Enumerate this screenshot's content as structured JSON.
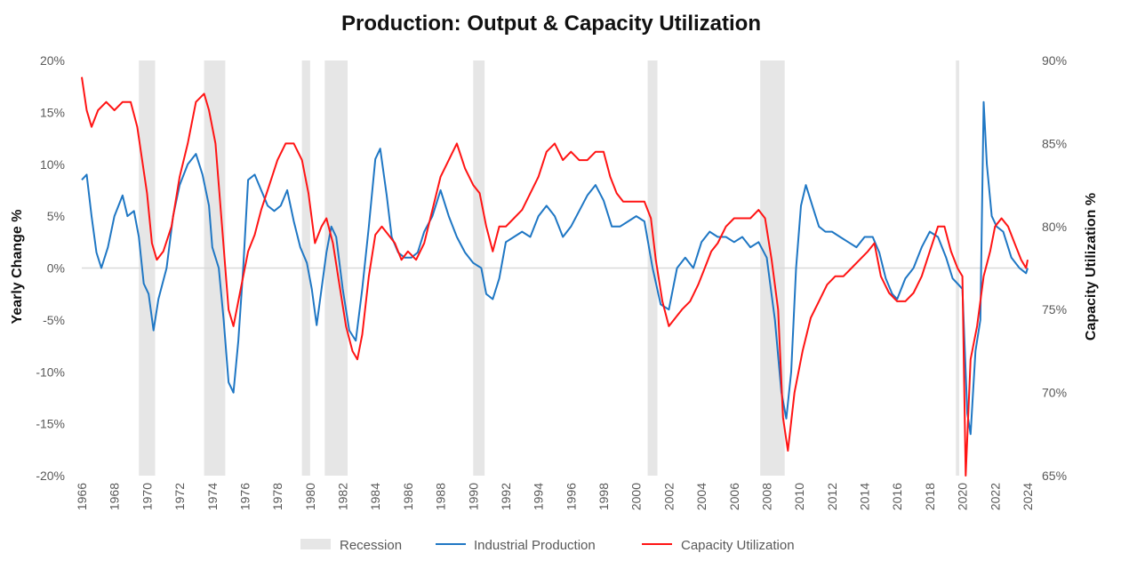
{
  "chart_data": {
    "type": "line",
    "title": "Production: Output & Capacity Utilization",
    "ylabel_left": "Yearly Change %",
    "ylabel_right": "Capacity Utilization %",
    "xlim": [
      1966,
      2024
    ],
    "ylim_left": [
      -20,
      20
    ],
    "ylim_right": [
      65,
      90
    ],
    "x_ticks": [
      "1966",
      "1968",
      "1970",
      "1972",
      "1974",
      "1976",
      "1978",
      "1980",
      "1982",
      "1984",
      "1986",
      "1988",
      "1990",
      "1992",
      "1994",
      "1996",
      "1998",
      "2000",
      "2002",
      "2004",
      "2006",
      "2008",
      "2010",
      "2012",
      "2014",
      "2016",
      "2018",
      "2020",
      "2022",
      "2024"
    ],
    "left_ticks": [
      "-20%",
      "-15%",
      "-10%",
      "-5%",
      "0%",
      "5%",
      "10%",
      "15%",
      "20%"
    ],
    "right_ticks": [
      "65%",
      "70%",
      "75%",
      "80%",
      "85%",
      "90%"
    ],
    "legend": {
      "placement": "bottom"
    },
    "grid": false,
    "recessions": [
      {
        "start": 1969.5,
        "end": 1970.5
      },
      {
        "start": 1973.5,
        "end": 1974.8
      },
      {
        "start": 1979.5,
        "end": 1980.0
      },
      {
        "start": 1980.9,
        "end": 1982.3
      },
      {
        "start": 1990.0,
        "end": 1990.7
      },
      {
        "start": 2000.7,
        "end": 2001.3
      },
      {
        "start": 2007.6,
        "end": 2009.1
      },
      {
        "start": 2019.6,
        "end": 2019.8
      }
    ],
    "series": [
      {
        "name": "Recession",
        "kind": "band",
        "color": "#e6e6e6"
      },
      {
        "name": "Industrial Production",
        "axis": "left",
        "color": "#1f77c4",
        "points": [
          [
            1966.0,
            8.5
          ],
          [
            1966.3,
            9
          ],
          [
            1966.6,
            5
          ],
          [
            1966.9,
            1.5
          ],
          [
            1967.2,
            0
          ],
          [
            1967.6,
            2
          ],
          [
            1968.0,
            5
          ],
          [
            1968.5,
            7
          ],
          [
            1968.8,
            5
          ],
          [
            1969.2,
            5.5
          ],
          [
            1969.5,
            3
          ],
          [
            1969.8,
            -1.5
          ],
          [
            1970.1,
            -2.5
          ],
          [
            1970.4,
            -6
          ],
          [
            1970.7,
            -3
          ],
          [
            1971.2,
            0
          ],
          [
            1971.6,
            5
          ],
          [
            1972.0,
            8
          ],
          [
            1972.5,
            10
          ],
          [
            1973.0,
            11
          ],
          [
            1973.4,
            9
          ],
          [
            1973.8,
            6
          ],
          [
            1974.0,
            2
          ],
          [
            1974.4,
            0
          ],
          [
            1974.7,
            -5
          ],
          [
            1975.0,
            -11
          ],
          [
            1975.3,
            -12
          ],
          [
            1975.6,
            -7
          ],
          [
            1975.9,
            0
          ],
          [
            1976.2,
            8.5
          ],
          [
            1976.6,
            9
          ],
          [
            1977.0,
            7.5
          ],
          [
            1977.4,
            6
          ],
          [
            1977.8,
            5.5
          ],
          [
            1978.2,
            6
          ],
          [
            1978.6,
            7.5
          ],
          [
            1979.0,
            4.5
          ],
          [
            1979.4,
            2
          ],
          [
            1979.8,
            0.5
          ],
          [
            1980.1,
            -2
          ],
          [
            1980.4,
            -5.5
          ],
          [
            1980.7,
            -2
          ],
          [
            1981.0,
            1.5
          ],
          [
            1981.3,
            4
          ],
          [
            1981.6,
            3
          ],
          [
            1982.0,
            -2
          ],
          [
            1982.4,
            -6
          ],
          [
            1982.8,
            -7
          ],
          [
            1983.2,
            -2
          ],
          [
            1983.6,
            4
          ],
          [
            1984.0,
            10.5
          ],
          [
            1984.3,
            11.5
          ],
          [
            1984.7,
            7
          ],
          [
            1985.0,
            3
          ],
          [
            1985.4,
            1.5
          ],
          [
            1985.8,
            1
          ],
          [
            1986.2,
            1
          ],
          [
            1986.6,
            1.5
          ],
          [
            1987.0,
            3.5
          ],
          [
            1987.5,
            5
          ],
          [
            1988.0,
            7.5
          ],
          [
            1988.5,
            5
          ],
          [
            1989.0,
            3
          ],
          [
            1989.5,
            1.5
          ],
          [
            1990.0,
            0.5
          ],
          [
            1990.5,
            0
          ],
          [
            1990.8,
            -2.5
          ],
          [
            1991.2,
            -3
          ],
          [
            1991.6,
            -1
          ],
          [
            1992.0,
            2.5
          ],
          [
            1992.5,
            3
          ],
          [
            1993.0,
            3.5
          ],
          [
            1993.5,
            3
          ],
          [
            1994.0,
            5
          ],
          [
            1994.5,
            6
          ],
          [
            1995.0,
            5
          ],
          [
            1995.5,
            3
          ],
          [
            1996.0,
            4
          ],
          [
            1996.5,
            5.5
          ],
          [
            1997.0,
            7
          ],
          [
            1997.5,
            8
          ],
          [
            1998.0,
            6.5
          ],
          [
            1998.5,
            4
          ],
          [
            1999.0,
            4
          ],
          [
            1999.5,
            4.5
          ],
          [
            2000.0,
            5
          ],
          [
            2000.5,
            4.5
          ],
          [
            2001.0,
            0
          ],
          [
            2001.5,
            -3.5
          ],
          [
            2002.0,
            -4
          ],
          [
            2002.5,
            0
          ],
          [
            2003.0,
            1
          ],
          [
            2003.5,
            0
          ],
          [
            2004.0,
            2.5
          ],
          [
            2004.5,
            3.5
          ],
          [
            2005.0,
            3
          ],
          [
            2005.5,
            3
          ],
          [
            2006.0,
            2.5
          ],
          [
            2006.5,
            3
          ],
          [
            2007.0,
            2
          ],
          [
            2007.5,
            2.5
          ],
          [
            2008.0,
            1
          ],
          [
            2008.5,
            -5
          ],
          [
            2008.9,
            -12
          ],
          [
            2009.2,
            -14.5
          ],
          [
            2009.5,
            -10
          ],
          [
            2009.8,
            0
          ],
          [
            2010.1,
            6
          ],
          [
            2010.4,
            8
          ],
          [
            2010.8,
            6
          ],
          [
            2011.2,
            4
          ],
          [
            2011.6,
            3.5
          ],
          [
            2012.0,
            3.5
          ],
          [
            2012.5,
            3
          ],
          [
            2013.0,
            2.5
          ],
          [
            2013.5,
            2
          ],
          [
            2014.0,
            3
          ],
          [
            2014.5,
            3
          ],
          [
            2014.9,
            1.5
          ],
          [
            2015.3,
            -1
          ],
          [
            2015.7,
            -2.5
          ],
          [
            2016.0,
            -3
          ],
          [
            2016.5,
            -1
          ],
          [
            2017.0,
            0
          ],
          [
            2017.5,
            2
          ],
          [
            2018.0,
            3.5
          ],
          [
            2018.5,
            3
          ],
          [
            2019.0,
            1
          ],
          [
            2019.4,
            -1
          ],
          [
            2019.7,
            -1.5
          ],
          [
            2020.0,
            -2
          ],
          [
            2020.3,
            -14
          ],
          [
            2020.5,
            -16
          ],
          [
            2020.8,
            -8
          ],
          [
            2021.1,
            -5
          ],
          [
            2021.3,
            16
          ],
          [
            2021.5,
            10
          ],
          [
            2021.8,
            5
          ],
          [
            2022.1,
            4
          ],
          [
            2022.5,
            3.5
          ],
          [
            2023.0,
            1
          ],
          [
            2023.5,
            0
          ],
          [
            2023.9,
            -0.5
          ],
          [
            2024.0,
            0
          ]
        ]
      },
      {
        "name": "Capacity Utilization",
        "axis": "right",
        "color": "#ff1414",
        "points": [
          [
            1966.0,
            89
          ],
          [
            1966.3,
            87
          ],
          [
            1966.6,
            86
          ],
          [
            1967.0,
            87
          ],
          [
            1967.5,
            87.5
          ],
          [
            1968.0,
            87
          ],
          [
            1968.5,
            87.5
          ],
          [
            1969.0,
            87.5
          ],
          [
            1969.4,
            86
          ],
          [
            1969.7,
            84
          ],
          [
            1970.0,
            82
          ],
          [
            1970.3,
            79
          ],
          [
            1970.6,
            78
          ],
          [
            1971.0,
            78.5
          ],
          [
            1971.5,
            80
          ],
          [
            1972.0,
            83
          ],
          [
            1972.5,
            85
          ],
          [
            1973.0,
            87.5
          ],
          [
            1973.5,
            88
          ],
          [
            1973.8,
            87
          ],
          [
            1974.2,
            85
          ],
          [
            1974.6,
            80
          ],
          [
            1975.0,
            75
          ],
          [
            1975.3,
            74
          ],
          [
            1975.7,
            76
          ],
          [
            1976.2,
            78.5
          ],
          [
            1976.6,
            79.5
          ],
          [
            1977.0,
            81
          ],
          [
            1977.5,
            82.5
          ],
          [
            1978.0,
            84
          ],
          [
            1978.5,
            85
          ],
          [
            1979.0,
            85
          ],
          [
            1979.5,
            84
          ],
          [
            1979.9,
            82
          ],
          [
            1980.3,
            79
          ],
          [
            1980.7,
            80
          ],
          [
            1981.0,
            80.5
          ],
          [
            1981.4,
            79
          ],
          [
            1981.8,
            76.5
          ],
          [
            1982.2,
            74
          ],
          [
            1982.6,
            72.5
          ],
          [
            1982.9,
            72
          ],
          [
            1983.2,
            73.5
          ],
          [
            1983.6,
            77
          ],
          [
            1984.0,
            79.5
          ],
          [
            1984.4,
            80
          ],
          [
            1984.8,
            79.5
          ],
          [
            1985.2,
            79
          ],
          [
            1985.6,
            78
          ],
          [
            1986.0,
            78.5
          ],
          [
            1986.5,
            78
          ],
          [
            1987.0,
            79
          ],
          [
            1987.5,
            81
          ],
          [
            1988.0,
            83
          ],
          [
            1988.5,
            84
          ],
          [
            1989.0,
            85
          ],
          [
            1989.5,
            83.5
          ],
          [
            1990.0,
            82.5
          ],
          [
            1990.4,
            82
          ],
          [
            1990.8,
            80
          ],
          [
            1991.2,
            78.5
          ],
          [
            1991.6,
            80
          ],
          [
            1992.0,
            80
          ],
          [
            1992.5,
            80.5
          ],
          [
            1993.0,
            81
          ],
          [
            1993.5,
            82
          ],
          [
            1994.0,
            83
          ],
          [
            1994.5,
            84.5
          ],
          [
            1995.0,
            85
          ],
          [
            1995.5,
            84
          ],
          [
            1996.0,
            84.5
          ],
          [
            1996.5,
            84
          ],
          [
            1997.0,
            84
          ],
          [
            1997.5,
            84.5
          ],
          [
            1998.0,
            84.5
          ],
          [
            1998.4,
            83
          ],
          [
            1998.8,
            82
          ],
          [
            1999.2,
            81.5
          ],
          [
            1999.6,
            81.5
          ],
          [
            2000.0,
            81.5
          ],
          [
            2000.5,
            81.5
          ],
          [
            2000.9,
            80.5
          ],
          [
            2001.2,
            78
          ],
          [
            2001.6,
            75.5
          ],
          [
            2002.0,
            74
          ],
          [
            2002.4,
            74.5
          ],
          [
            2002.8,
            75
          ],
          [
            2003.3,
            75.5
          ],
          [
            2003.8,
            76.5
          ],
          [
            2004.2,
            77.5
          ],
          [
            2004.6,
            78.5
          ],
          [
            2005.0,
            79
          ],
          [
            2005.5,
            80
          ],
          [
            2006.0,
            80.5
          ],
          [
            2006.5,
            80.5
          ],
          [
            2007.0,
            80.5
          ],
          [
            2007.5,
            81
          ],
          [
            2007.9,
            80.5
          ],
          [
            2008.3,
            78
          ],
          [
            2008.7,
            75
          ],
          [
            2009.0,
            68.5
          ],
          [
            2009.3,
            66.5
          ],
          [
            2009.7,
            70
          ],
          [
            2010.2,
            72.5
          ],
          [
            2010.7,
            74.5
          ],
          [
            2011.2,
            75.5
          ],
          [
            2011.7,
            76.5
          ],
          [
            2012.2,
            77
          ],
          [
            2012.7,
            77
          ],
          [
            2013.2,
            77.5
          ],
          [
            2013.7,
            78
          ],
          [
            2014.2,
            78.5
          ],
          [
            2014.6,
            79
          ],
          [
            2015.0,
            77
          ],
          [
            2015.5,
            76
          ],
          [
            2016.0,
            75.5
          ],
          [
            2016.5,
            75.5
          ],
          [
            2017.0,
            76
          ],
          [
            2017.5,
            77
          ],
          [
            2018.0,
            78.5
          ],
          [
            2018.5,
            80
          ],
          [
            2018.9,
            80
          ],
          [
            2019.3,
            78.5
          ],
          [
            2019.7,
            77.5
          ],
          [
            2020.0,
            77
          ],
          [
            2020.2,
            65
          ],
          [
            2020.5,
            72
          ],
          [
            2020.9,
            74
          ],
          [
            2021.3,
            77
          ],
          [
            2021.7,
            78.5
          ],
          [
            2022.0,
            80
          ],
          [
            2022.4,
            80.5
          ],
          [
            2022.8,
            80
          ],
          [
            2023.2,
            79
          ],
          [
            2023.6,
            78
          ],
          [
            2023.9,
            77.5
          ],
          [
            2024.0,
            78
          ]
        ]
      }
    ]
  }
}
